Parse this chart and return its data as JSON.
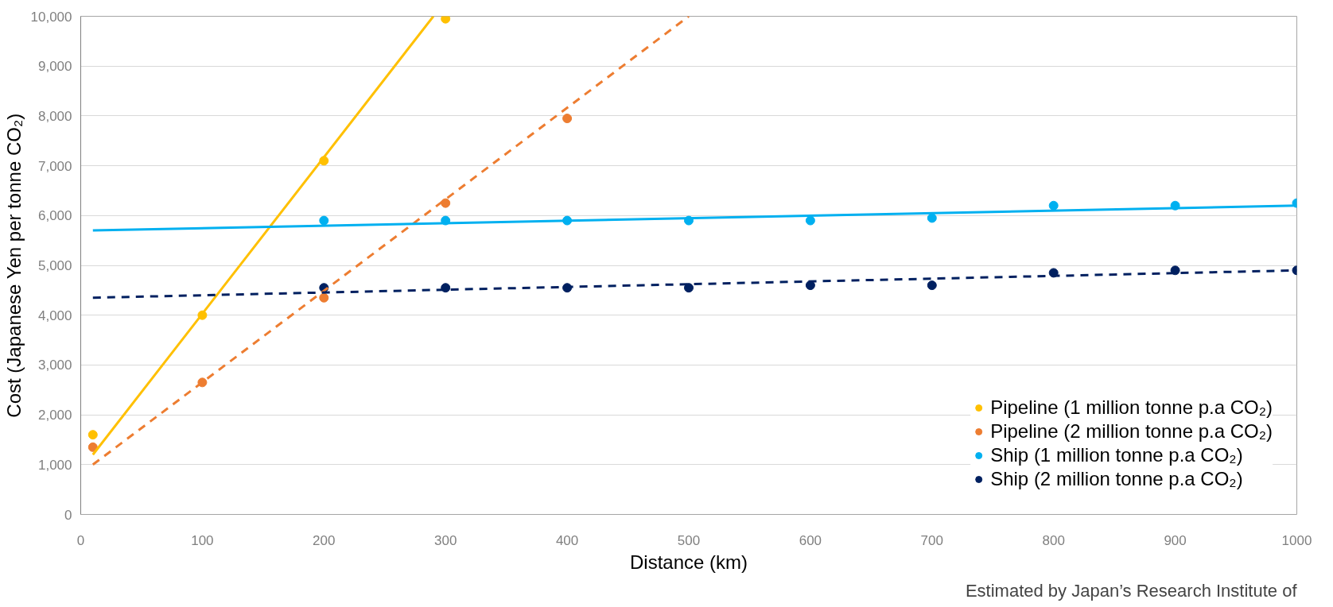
{
  "chart_data": {
    "type": "scatter",
    "xlabel": "Distance (km)",
    "ylabel": "Cost (Japanese Yen per tonne CO₂)",
    "annotations": [
      "Estimated by Japan’s Research Institute of"
    ],
    "xlim": [
      0,
      1000
    ],
    "xticks": [
      0,
      100,
      200,
      300,
      400,
      500,
      600,
      700,
      800,
      900,
      1000
    ],
    "ylim": [
      0,
      10000
    ],
    "yticks": [
      {
        "value": 0,
        "label": "0"
      },
      {
        "value": 1000,
        "label": "1,000"
      },
      {
        "value": 2000,
        "label": "2,000"
      },
      {
        "value": 3000,
        "label": "3,000"
      },
      {
        "value": 4000,
        "label": "4,000"
      },
      {
        "value": 5000,
        "label": "5,000"
      },
      {
        "value": 6000,
        "label": "6,000"
      },
      {
        "value": 7000,
        "label": "7,000"
      },
      {
        "value": 8000,
        "label": "8,000"
      },
      {
        "value": 9000,
        "label": "9,000"
      },
      {
        "value": 10000,
        "label": "10,000"
      }
    ],
    "grid": "y",
    "legend": "bottom right",
    "marker": "circle",
    "series": [
      {
        "name": "Pipeline (1 million tonne p.a CO₂)",
        "color": "#ffc000",
        "x": [
          10,
          100,
          200,
          300
        ],
        "values": [
          1600,
          4000,
          7100,
          9950
        ]
      },
      {
        "name": "Pipeline (2 million tonne p.a CO₂)",
        "color": "#ed7d31",
        "x": [
          10,
          100,
          200,
          300,
          400
        ],
        "values": [
          1350,
          2650,
          4350,
          6250,
          7950
        ]
      },
      {
        "name": "Ship (1 million tonne p.a CO₂)",
        "color": "#00b0f0",
        "x": [
          200,
          300,
          400,
          500,
          600,
          700,
          800,
          900,
          1000
        ],
        "values": [
          5900,
          5900,
          5900,
          5900,
          5900,
          5950,
          6200,
          6200,
          6250
        ]
      },
      {
        "name": "Ship (2 million tonne p.a CO₂)",
        "color": "#002060",
        "x": [
          200,
          300,
          400,
          500,
          600,
          700,
          800,
          900,
          1000
        ],
        "values": [
          4550,
          4550,
          4550,
          4550,
          4600,
          4600,
          4850,
          4900,
          4900
        ]
      },
      {
        "type": "line",
        "marker": "none",
        "color": "#ffc000",
        "line_style": "solid",
        "x": [
          10,
          290
        ],
        "values": [
          1200,
          10000
        ]
      },
      {
        "type": "line",
        "marker": "none",
        "color": "#ed7d31",
        "line_style": "dashed",
        "x": [
          10,
          500
        ],
        "values": [
          1000,
          10000
        ]
      },
      {
        "type": "line",
        "marker": "none",
        "color": "#00b0f0",
        "line_style": "solid",
        "x": [
          10,
          1000
        ],
        "values": [
          5700,
          6200
        ]
      },
      {
        "type": "line",
        "marker": "none",
        "color": "#002060",
        "line_style": "dashed",
        "x": [
          10,
          1000
        ],
        "values": [
          4350,
          4900
        ]
      }
    ]
  }
}
